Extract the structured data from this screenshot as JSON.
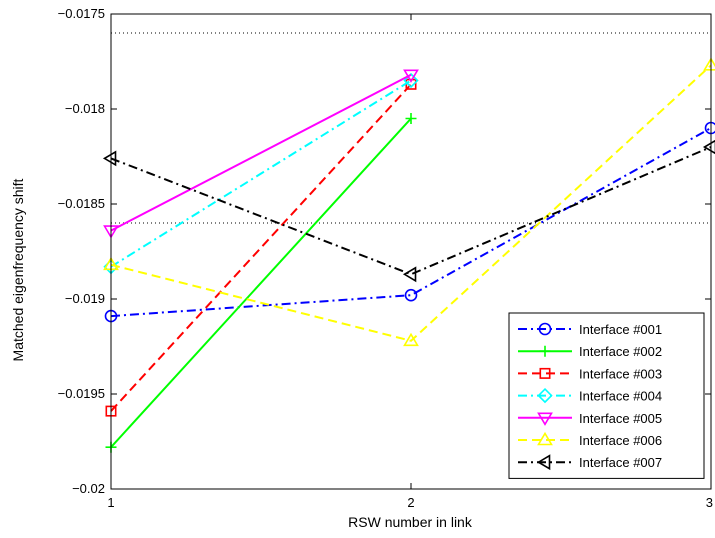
{
  "chart_data": {
    "type": "line",
    "xlabel": "RSW number in link",
    "ylabel": "Matched eigenfrequency shift",
    "xlim": [
      1,
      3
    ],
    "ylim": [
      -0.02,
      -0.0175
    ],
    "xticks": [
      1,
      2,
      3
    ],
    "xtick_labels": [
      "1",
      "2",
      "3"
    ],
    "yticks": [
      -0.02,
      -0.0195,
      -0.019,
      -0.0185,
      -0.018,
      -0.0175
    ],
    "ytick_labels": [
      "−0.02",
      "−0.0195",
      "−0.019",
      "−0.0185",
      "−0.018",
      "−0.0175"
    ],
    "grid": false,
    "legend_position": "bottom-right",
    "reference_lines": [
      -0.0176,
      -0.0186
    ],
    "series": [
      {
        "name": "Interface #001",
        "x": [
          1,
          2,
          3
        ],
        "y": [
          -0.01909,
          -0.01898,
          -0.0181
        ],
        "color": "#0000ff",
        "dash": "dashdot",
        "marker": "circle"
      },
      {
        "name": "Interface #002",
        "x": [
          1,
          2
        ],
        "y": [
          -0.01978,
          -0.01805
        ],
        "color": "#00ff00",
        "dash": "solid",
        "marker": "plus"
      },
      {
        "name": "Interface #003",
        "x": [
          1,
          2
        ],
        "y": [
          -0.01959,
          -0.01787
        ],
        "color": "#ff0000",
        "dash": "dashed",
        "marker": "square"
      },
      {
        "name": "Interface #004",
        "x": [
          1,
          2
        ],
        "y": [
          -0.01883,
          -0.01785
        ],
        "color": "#00ffff",
        "dash": "dashdot",
        "marker": "diamond"
      },
      {
        "name": "Interface #005",
        "x": [
          1,
          2
        ],
        "y": [
          -0.01864,
          -0.01782
        ],
        "color": "#ff00ff",
        "dash": "solid",
        "marker": "triangle-down"
      },
      {
        "name": "Interface #006",
        "x": [
          1,
          2,
          3
        ],
        "y": [
          -0.01882,
          -0.01922,
          -0.01777
        ],
        "color": "#ffff00",
        "dash": "dashed",
        "marker": "triangle-up"
      },
      {
        "name": "Interface #007",
        "x": [
          1,
          2,
          3
        ],
        "y": [
          -0.01826,
          -0.01887,
          -0.0182
        ],
        "color": "#000000",
        "dash": "dashdot",
        "marker": "triangle-left"
      }
    ]
  }
}
